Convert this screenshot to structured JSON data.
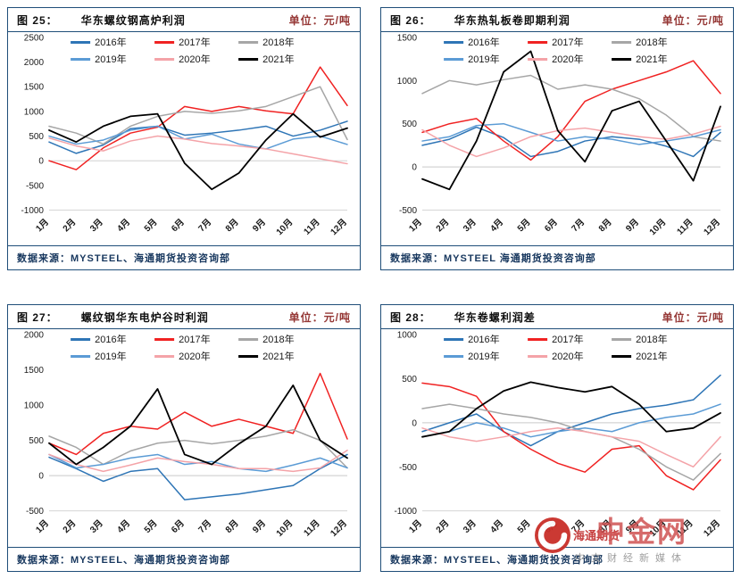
{
  "theme": {
    "border": "#1F4E79",
    "unit": "#953735",
    "footer": "#17375E",
    "gridline": "#c9c9c9",
    "axis": "#d6d6d6"
  },
  "watermark": {
    "overlay": "海通期货",
    "brand": "中金网",
    "tagline": "中文财经新媒体"
  },
  "chart_data": [
    {
      "type": "line",
      "fig_label": "图 25：",
      "title": "华东螺纹钢高炉利润",
      "unit": "单位：元/吨",
      "source": "数据来源：MYSTEEL、海通期货投资咨询部",
      "legend_position": "top",
      "x_labels": [
        "1月",
        "2月",
        "3月",
        "4月",
        "5月",
        "6月",
        "7月",
        "8月",
        "9月",
        "10月",
        "11月",
        "12月"
      ],
      "ylim": [
        -1000,
        2500
      ],
      "yticks": [
        2500,
        2000,
        1500,
        1000,
        500,
        0,
        -500,
        -1000
      ],
      "series": [
        {
          "name": "2016年",
          "color": "#2E75B6",
          "values": [
            380,
            150,
            320,
            650,
            700,
            520,
            560,
            620,
            700,
            500,
            620,
            800
          ]
        },
        {
          "name": "2017年",
          "color": "#F02222",
          "values": [
            0,
            -180,
            260,
            560,
            680,
            1100,
            1000,
            1100,
            1010,
            950,
            1900,
            1120
          ]
        },
        {
          "name": "2018年",
          "color": "#A6A6A6",
          "values": [
            700,
            560,
            340,
            700,
            900,
            1000,
            960,
            1010,
            1100,
            1300,
            1500,
            430
          ]
        },
        {
          "name": "2019年",
          "color": "#5B9BD5",
          "values": [
            500,
            340,
            420,
            620,
            700,
            440,
            540,
            340,
            240,
            440,
            500,
            330
          ]
        },
        {
          "name": "2020年",
          "color": "#F4A3A8",
          "values": [
            460,
            300,
            200,
            400,
            500,
            440,
            350,
            300,
            240,
            140,
            40,
            -60
          ]
        },
        {
          "name": "2021年",
          "color": "#000000",
          "values": [
            620,
            380,
            700,
            900,
            950,
            -50,
            -580,
            -250,
            420,
            950,
            480,
            660
          ]
        }
      ]
    },
    {
      "type": "line",
      "fig_label": "图 26：",
      "title": "华东热轧板卷即期利润",
      "unit": "单位：元/吨",
      "source": "数据来源：MYSTEEL 海通期货投资咨询部",
      "legend_position": "top",
      "x_labels": [
        "1月",
        "2月",
        "3月",
        "4月",
        "5月",
        "6月",
        "7月",
        "8月",
        "9月",
        "10月",
        "11月",
        "12月"
      ],
      "ylim": [
        -500,
        1500
      ],
      "yticks": [
        1500,
        1000,
        500,
        0,
        -500
      ],
      "series": [
        {
          "name": "2016年",
          "color": "#2E75B6",
          "values": [
            250,
            320,
            460,
            340,
            120,
            180,
            300,
            350,
            320,
            240,
            120,
            400
          ]
        },
        {
          "name": "2017年",
          "color": "#F02222",
          "values": [
            400,
            500,
            560,
            300,
            80,
            350,
            760,
            900,
            1000,
            1100,
            1230,
            850
          ]
        },
        {
          "name": "2018年",
          "color": "#A6A6A6",
          "values": [
            850,
            1000,
            950,
            1010,
            1060,
            900,
            950,
            900,
            790,
            600,
            350,
            300
          ]
        },
        {
          "name": "2019年",
          "color": "#5B9BD5",
          "values": [
            300,
            350,
            480,
            500,
            400,
            300,
            350,
            320,
            260,
            300,
            350,
            430
          ]
        },
        {
          "name": "2020年",
          "color": "#F4A3A8",
          "values": [
            430,
            250,
            120,
            220,
            350,
            420,
            450,
            400,
            350,
            320,
            380,
            470
          ]
        },
        {
          "name": "2021年",
          "color": "#000000",
          "values": [
            -140,
            -260,
            300,
            1100,
            1340,
            420,
            60,
            650,
            760,
            300,
            -160,
            700
          ]
        }
      ]
    },
    {
      "type": "line",
      "fig_label": "图 27：",
      "title": "螺纹钢华东电炉谷时利润",
      "unit": "单位：元/吨",
      "source": "数据来源：MYSTEEL、海通期货投资咨询部",
      "legend_position": "top",
      "x_labels": [
        "1月",
        "2月",
        "3月",
        "4月",
        "5月",
        "6月",
        "7月",
        "8月",
        "9月",
        "10月",
        "11月",
        "12月"
      ],
      "ylim": [
        -500,
        2000
      ],
      "yticks": [
        2000,
        1500,
        1000,
        500,
        0,
        -500
      ],
      "series": [
        {
          "name": "2016年",
          "color": "#2E75B6",
          "values": [
            260,
            100,
            -80,
            60,
            100,
            -340,
            -300,
            -260,
            -200,
            -140,
            100,
            300
          ]
        },
        {
          "name": "2017年",
          "color": "#F02222",
          "values": [
            460,
            300,
            600,
            700,
            660,
            900,
            700,
            800,
            700,
            600,
            1450,
            520
          ]
        },
        {
          "name": "2018年",
          "color": "#A6A6A6",
          "values": [
            560,
            400,
            160,
            350,
            460,
            500,
            450,
            500,
            560,
            650,
            500,
            110
          ]
        },
        {
          "name": "2019年",
          "color": "#5B9BD5",
          "values": [
            300,
            110,
            160,
            250,
            300,
            160,
            200,
            100,
            60,
            150,
            250,
            110
          ]
        },
        {
          "name": "2020年",
          "color": "#F4A3A8",
          "values": [
            300,
            160,
            60,
            150,
            250,
            200,
            160,
            100,
            100,
            60,
            110,
            360
          ]
        },
        {
          "name": "2021年",
          "color": "#000000",
          "values": [
            460,
            160,
            400,
            700,
            1230,
            300,
            160,
            450,
            700,
            1280,
            500,
            250
          ]
        }
      ]
    },
    {
      "type": "line",
      "fig_label": "图 28：",
      "title": "华东卷螺利润差",
      "unit": "单位：元/吨",
      "source": "数据来源：MYSTEEL、海通期货投资咨询部",
      "legend_position": "top",
      "x_labels": [
        "1月",
        "2月",
        "3月",
        "4月",
        "5月",
        "6月",
        "7月",
        "8月",
        "9月",
        "10月",
        "11月",
        "12月"
      ],
      "ylim": [
        -1000,
        1000
      ],
      "yticks": [
        1000,
        500,
        0,
        -500,
        -1000
      ],
      "series": [
        {
          "name": "2016年",
          "color": "#2E75B6",
          "values": [
            -100,
            0,
            100,
            -100,
            -260,
            -100,
            0,
            100,
            160,
            200,
            260,
            540
          ]
        },
        {
          "name": "2017年",
          "color": "#F02222",
          "values": [
            450,
            410,
            300,
            -100,
            -300,
            -460,
            -560,
            -300,
            -260,
            -600,
            -760,
            -420
          ]
        },
        {
          "name": "2018年",
          "color": "#A6A6A6",
          "values": [
            160,
            210,
            160,
            100,
            60,
            0,
            -100,
            -160,
            -300,
            -500,
            -650,
            -350
          ]
        },
        {
          "name": "2019年",
          "color": "#5B9BD5",
          "values": [
            -160,
            -100,
            0,
            -60,
            -160,
            -100,
            -60,
            -100,
            0,
            60,
            100,
            210
          ]
        },
        {
          "name": "2020年",
          "color": "#F4A3A8",
          "values": [
            -60,
            -160,
            -210,
            -160,
            -100,
            -60,
            -100,
            -160,
            -210,
            -360,
            -500,
            -160
          ]
        },
        {
          "name": "2021年",
          "color": "#000000",
          "values": [
            -160,
            -100,
            160,
            360,
            460,
            400,
            350,
            410,
            210,
            -100,
            -60,
            110
          ]
        }
      ]
    }
  ]
}
